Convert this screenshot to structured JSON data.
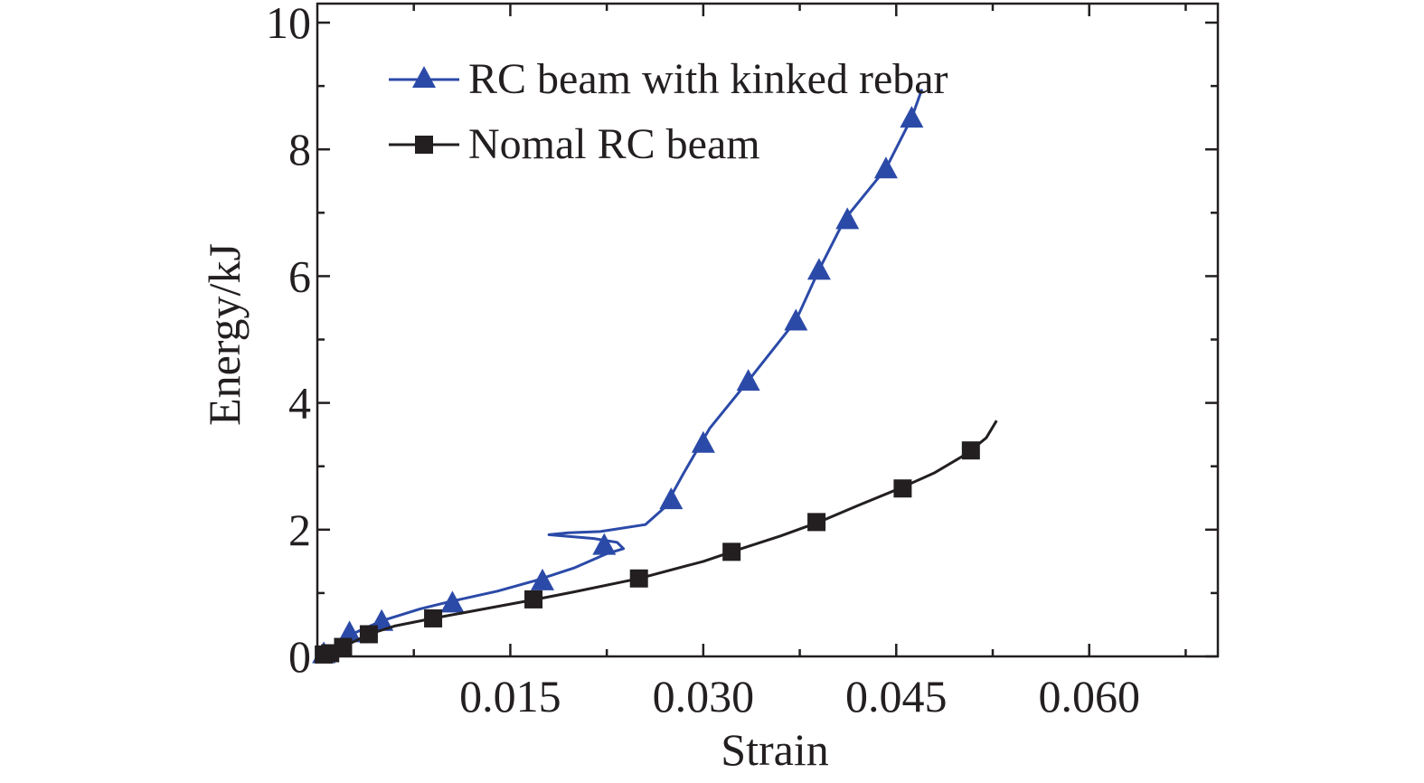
{
  "chart_data": {
    "type": "line",
    "title": "",
    "xlabel": "Strain",
    "ylabel": "Energy/kJ",
    "xlim": [
      0,
      0.07
    ],
    "ylim": [
      0,
      10.3
    ],
    "x_ticks": [
      0.015,
      0.03,
      0.045,
      0.06
    ],
    "x_tick_labels": [
      "0.015",
      "0.030",
      "0.045",
      "0.060"
    ],
    "y_ticks": [
      0,
      2,
      4,
      6,
      8,
      10
    ],
    "y_tick_labels": [
      "0",
      "2",
      "4",
      "6",
      "8",
      "10"
    ],
    "grid": false,
    "legend_position": "top-left",
    "series": [
      {
        "name": "RC beam with kinked rebar",
        "color": "#2b4aa8",
        "marker": "triangle",
        "line": [
          [
            0,
            0
          ],
          [
            0.001,
            0.05
          ],
          [
            0.002,
            0.2
          ],
          [
            0.003,
            0.38
          ],
          [
            0.005,
            0.56
          ],
          [
            0.008,
            0.75
          ],
          [
            0.01,
            0.85
          ],
          [
            0.014,
            1.03
          ],
          [
            0.017,
            1.2
          ],
          [
            0.02,
            1.4
          ],
          [
            0.0225,
            1.62
          ],
          [
            0.0238,
            1.7
          ],
          [
            0.0233,
            1.8
          ],
          [
            0.0215,
            1.86
          ],
          [
            0.018,
            1.92
          ],
          [
            0.0195,
            1.95
          ],
          [
            0.022,
            1.97
          ],
          [
            0.0255,
            2.08
          ],
          [
            0.027,
            2.35
          ],
          [
            0.0285,
            2.9
          ],
          [
            0.0305,
            3.6
          ],
          [
            0.0335,
            4.35
          ],
          [
            0.0372,
            5.3
          ],
          [
            0.039,
            6.1
          ],
          [
            0.041,
            6.9
          ],
          [
            0.0442,
            7.7
          ],
          [
            0.0462,
            8.5
          ],
          [
            0.047,
            8.95
          ]
        ],
        "markers": [
          [
            0.0005,
            0.05
          ],
          [
            0.0025,
            0.38
          ],
          [
            0.005,
            0.56
          ],
          [
            0.0105,
            0.85
          ],
          [
            0.0175,
            1.2
          ],
          [
            0.0223,
            1.76
          ],
          [
            0.0275,
            2.48
          ],
          [
            0.03,
            3.37
          ],
          [
            0.0335,
            4.35
          ],
          [
            0.0372,
            5.3
          ],
          [
            0.039,
            6.1
          ],
          [
            0.0412,
            6.9
          ],
          [
            0.0442,
            7.7
          ],
          [
            0.0462,
            8.5
          ]
        ]
      },
      {
        "name": "Nomal RC beam",
        "color": "#231f20",
        "marker": "square",
        "line": [
          [
            0,
            0.02
          ],
          [
            0.001,
            0.05
          ],
          [
            0.002,
            0.15
          ],
          [
            0.004,
            0.35
          ],
          [
            0.006,
            0.48
          ],
          [
            0.009,
            0.6
          ],
          [
            0.013,
            0.75
          ],
          [
            0.017,
            0.9
          ],
          [
            0.02,
            1.02
          ],
          [
            0.025,
            1.23
          ],
          [
            0.03,
            1.5
          ],
          [
            0.0325,
            1.67
          ],
          [
            0.036,
            1.9
          ],
          [
            0.039,
            2.12
          ],
          [
            0.042,
            2.38
          ],
          [
            0.0455,
            2.67
          ],
          [
            0.048,
            2.9
          ],
          [
            0.0505,
            3.2
          ],
          [
            0.052,
            3.45
          ],
          [
            0.0528,
            3.72
          ]
        ],
        "markers": [
          [
            0.0005,
            0.03
          ],
          [
            0.001,
            0.05
          ],
          [
            0.002,
            0.15
          ],
          [
            0.004,
            0.35
          ],
          [
            0.009,
            0.6
          ],
          [
            0.0168,
            0.9
          ],
          [
            0.025,
            1.23
          ],
          [
            0.0322,
            1.65
          ],
          [
            0.0388,
            2.12
          ],
          [
            0.0455,
            2.65
          ],
          [
            0.0508,
            3.25
          ]
        ]
      }
    ]
  }
}
